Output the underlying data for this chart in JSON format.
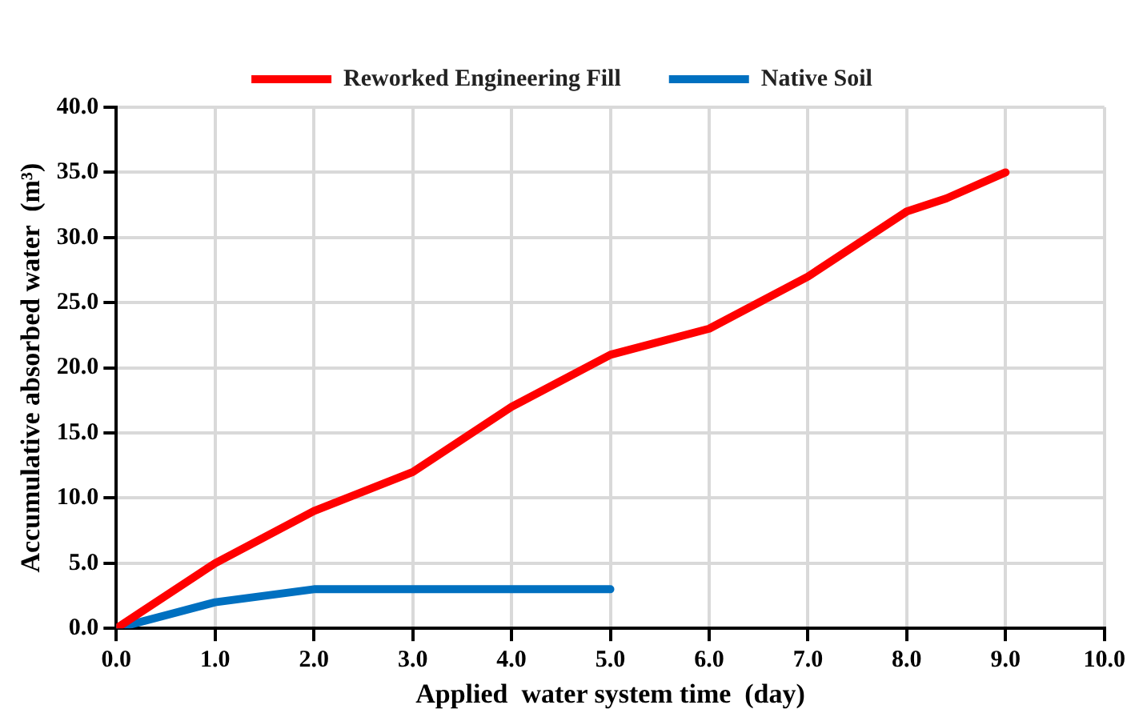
{
  "chart_data": {
    "type": "line",
    "xlabel": "Applied  water system time  (day)",
    "ylabel": "Accumulative absorbed water  (m³)",
    "series": [
      {
        "name": "Reworked Engineering Fill",
        "color": "#ff0000",
        "x": [
          0,
          1,
          2,
          3,
          4,
          5,
          6,
          7,
          8,
          8.4,
          9
        ],
        "values": [
          0,
          5,
          9,
          12,
          17,
          21,
          23,
          27,
          32,
          33,
          35
        ]
      },
      {
        "name": "Native Soil",
        "color": "#0070c0",
        "x": [
          0,
          1,
          2,
          5
        ],
        "values": [
          0,
          2,
          3,
          3
        ]
      }
    ],
    "xlim": [
      0,
      10
    ],
    "xticks": [
      {
        "value": 0,
        "label": "0.0"
      },
      {
        "value": 1,
        "label": "1.0"
      },
      {
        "value": 2,
        "label": "2.0"
      },
      {
        "value": 3,
        "label": "3.0"
      },
      {
        "value": 4,
        "label": "4.0"
      },
      {
        "value": 5,
        "label": "5.0"
      },
      {
        "value": 6,
        "label": "6.0"
      },
      {
        "value": 7,
        "label": "7.0"
      },
      {
        "value": 8,
        "label": "8.0"
      },
      {
        "value": 9,
        "label": "9.0"
      },
      {
        "value": 10,
        "label": "10.0"
      }
    ],
    "ylim": [
      0,
      40
    ],
    "yticks": [
      {
        "value": 0,
        "label": "0.0"
      },
      {
        "value": 5,
        "label": "5.0"
      },
      {
        "value": 10,
        "label": "10.0"
      },
      {
        "value": 15,
        "label": "15.0"
      },
      {
        "value": 20,
        "label": "20.0"
      },
      {
        "value": 25,
        "label": "25.0"
      },
      {
        "value": 30,
        "label": "30.0"
      },
      {
        "value": 35,
        "label": "35.0"
      },
      {
        "value": 40,
        "label": "40.0"
      }
    ],
    "grid": true,
    "legend": "top",
    "marker": "none",
    "line_style": "solid"
  }
}
